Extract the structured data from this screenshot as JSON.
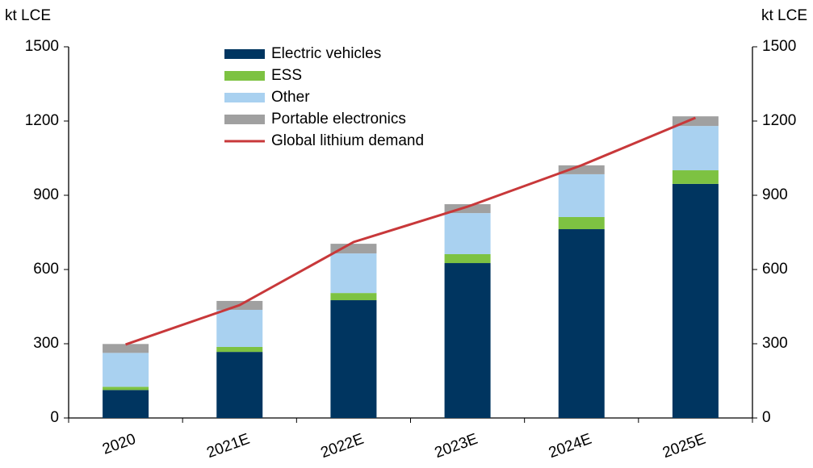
{
  "chart_data": {
    "type": "bar",
    "stacked": true,
    "y_label": "kt LCE",
    "y2_label": "kt LCE",
    "categories": [
      "2020",
      "2021E",
      "2022E",
      "2023E",
      "2024E",
      "2025E"
    ],
    "series": [
      {
        "name": "Electric vehicles",
        "color": "#003560",
        "values": [
          113,
          267,
          476,
          626,
          763,
          946
        ]
      },
      {
        "name": "ESS",
        "color": "#7dc242",
        "values": [
          13,
          20,
          29,
          36,
          49,
          55
        ]
      },
      {
        "name": "Other",
        "color": "#a9d1f0",
        "values": [
          137,
          150,
          160,
          166,
          173,
          179
        ]
      },
      {
        "name": "Portable electronics",
        "color": "#a0a0a0",
        "values": [
          36,
          36,
          39,
          36,
          36,
          39
        ]
      },
      {
        "name": "Global lithium demand",
        "type": "line",
        "axis": "y2",
        "color": "#c8383a",
        "values": [
          297,
          456,
          711,
          854,
          1021,
          1213
        ]
      }
    ],
    "ylim": [
      0,
      1500
    ],
    "yticks": [
      0,
      300,
      600,
      900,
      1200,
      1500
    ],
    "y2lim": [
      0,
      1500
    ],
    "y2ticks": [
      0,
      300,
      600,
      900,
      1200,
      1500
    ],
    "legend": "top"
  }
}
